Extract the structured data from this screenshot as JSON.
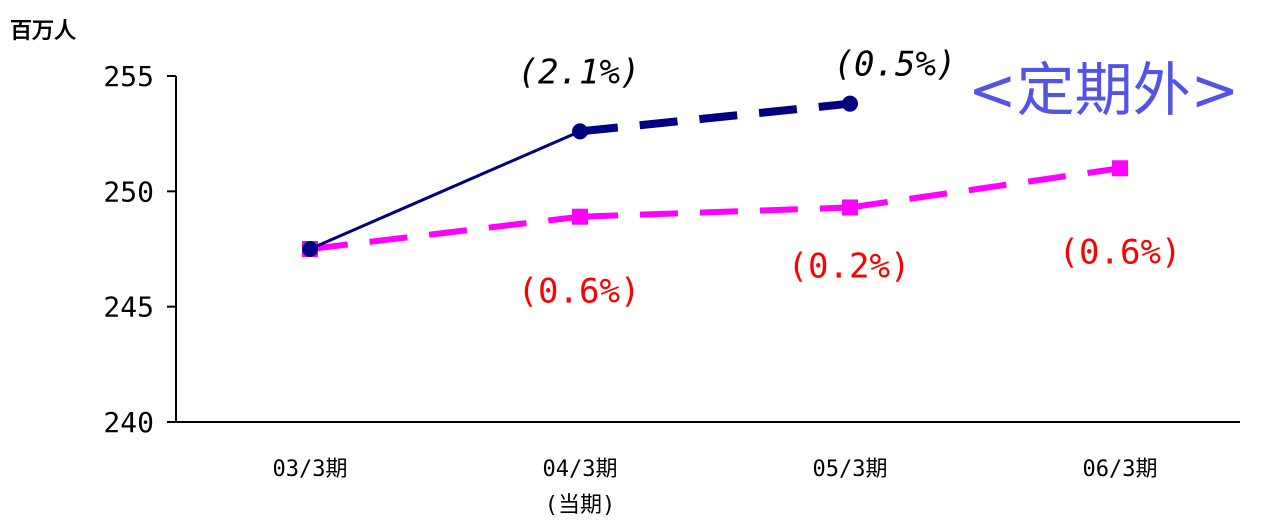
{
  "chart_data": {
    "type": "line",
    "unit_label": "百万人",
    "section_label": "<定期外>",
    "ylim": [
      240,
      255
    ],
    "yticks": [
      "255",
      "250",
      "245",
      "240"
    ],
    "categories": [
      "03/3期",
      "04/3期",
      "05/3期",
      "06/3期"
    ],
    "category_sublabels": [
      "",
      "(当期)",
      "",
      ""
    ],
    "series": [
      {
        "color": "#000080",
        "marker": "circle",
        "values": [
          247.5,
          252.6,
          253.8,
          null
        ],
        "dash_from_index": 1,
        "labels": [
          "",
          "(2.1%)",
          "(0.5%)",
          ""
        ],
        "label_position": "above"
      },
      {
        "color": "#ff00ff",
        "marker": "square",
        "values": [
          247.5,
          248.9,
          249.3,
          251.0
        ],
        "dash_from_index": 0,
        "labels": [
          "",
          "(0.6%)",
          "(0.2%)",
          "(0.6%)"
        ],
        "label_position": "below"
      }
    ],
    "grid": false,
    "legend": "none"
  }
}
